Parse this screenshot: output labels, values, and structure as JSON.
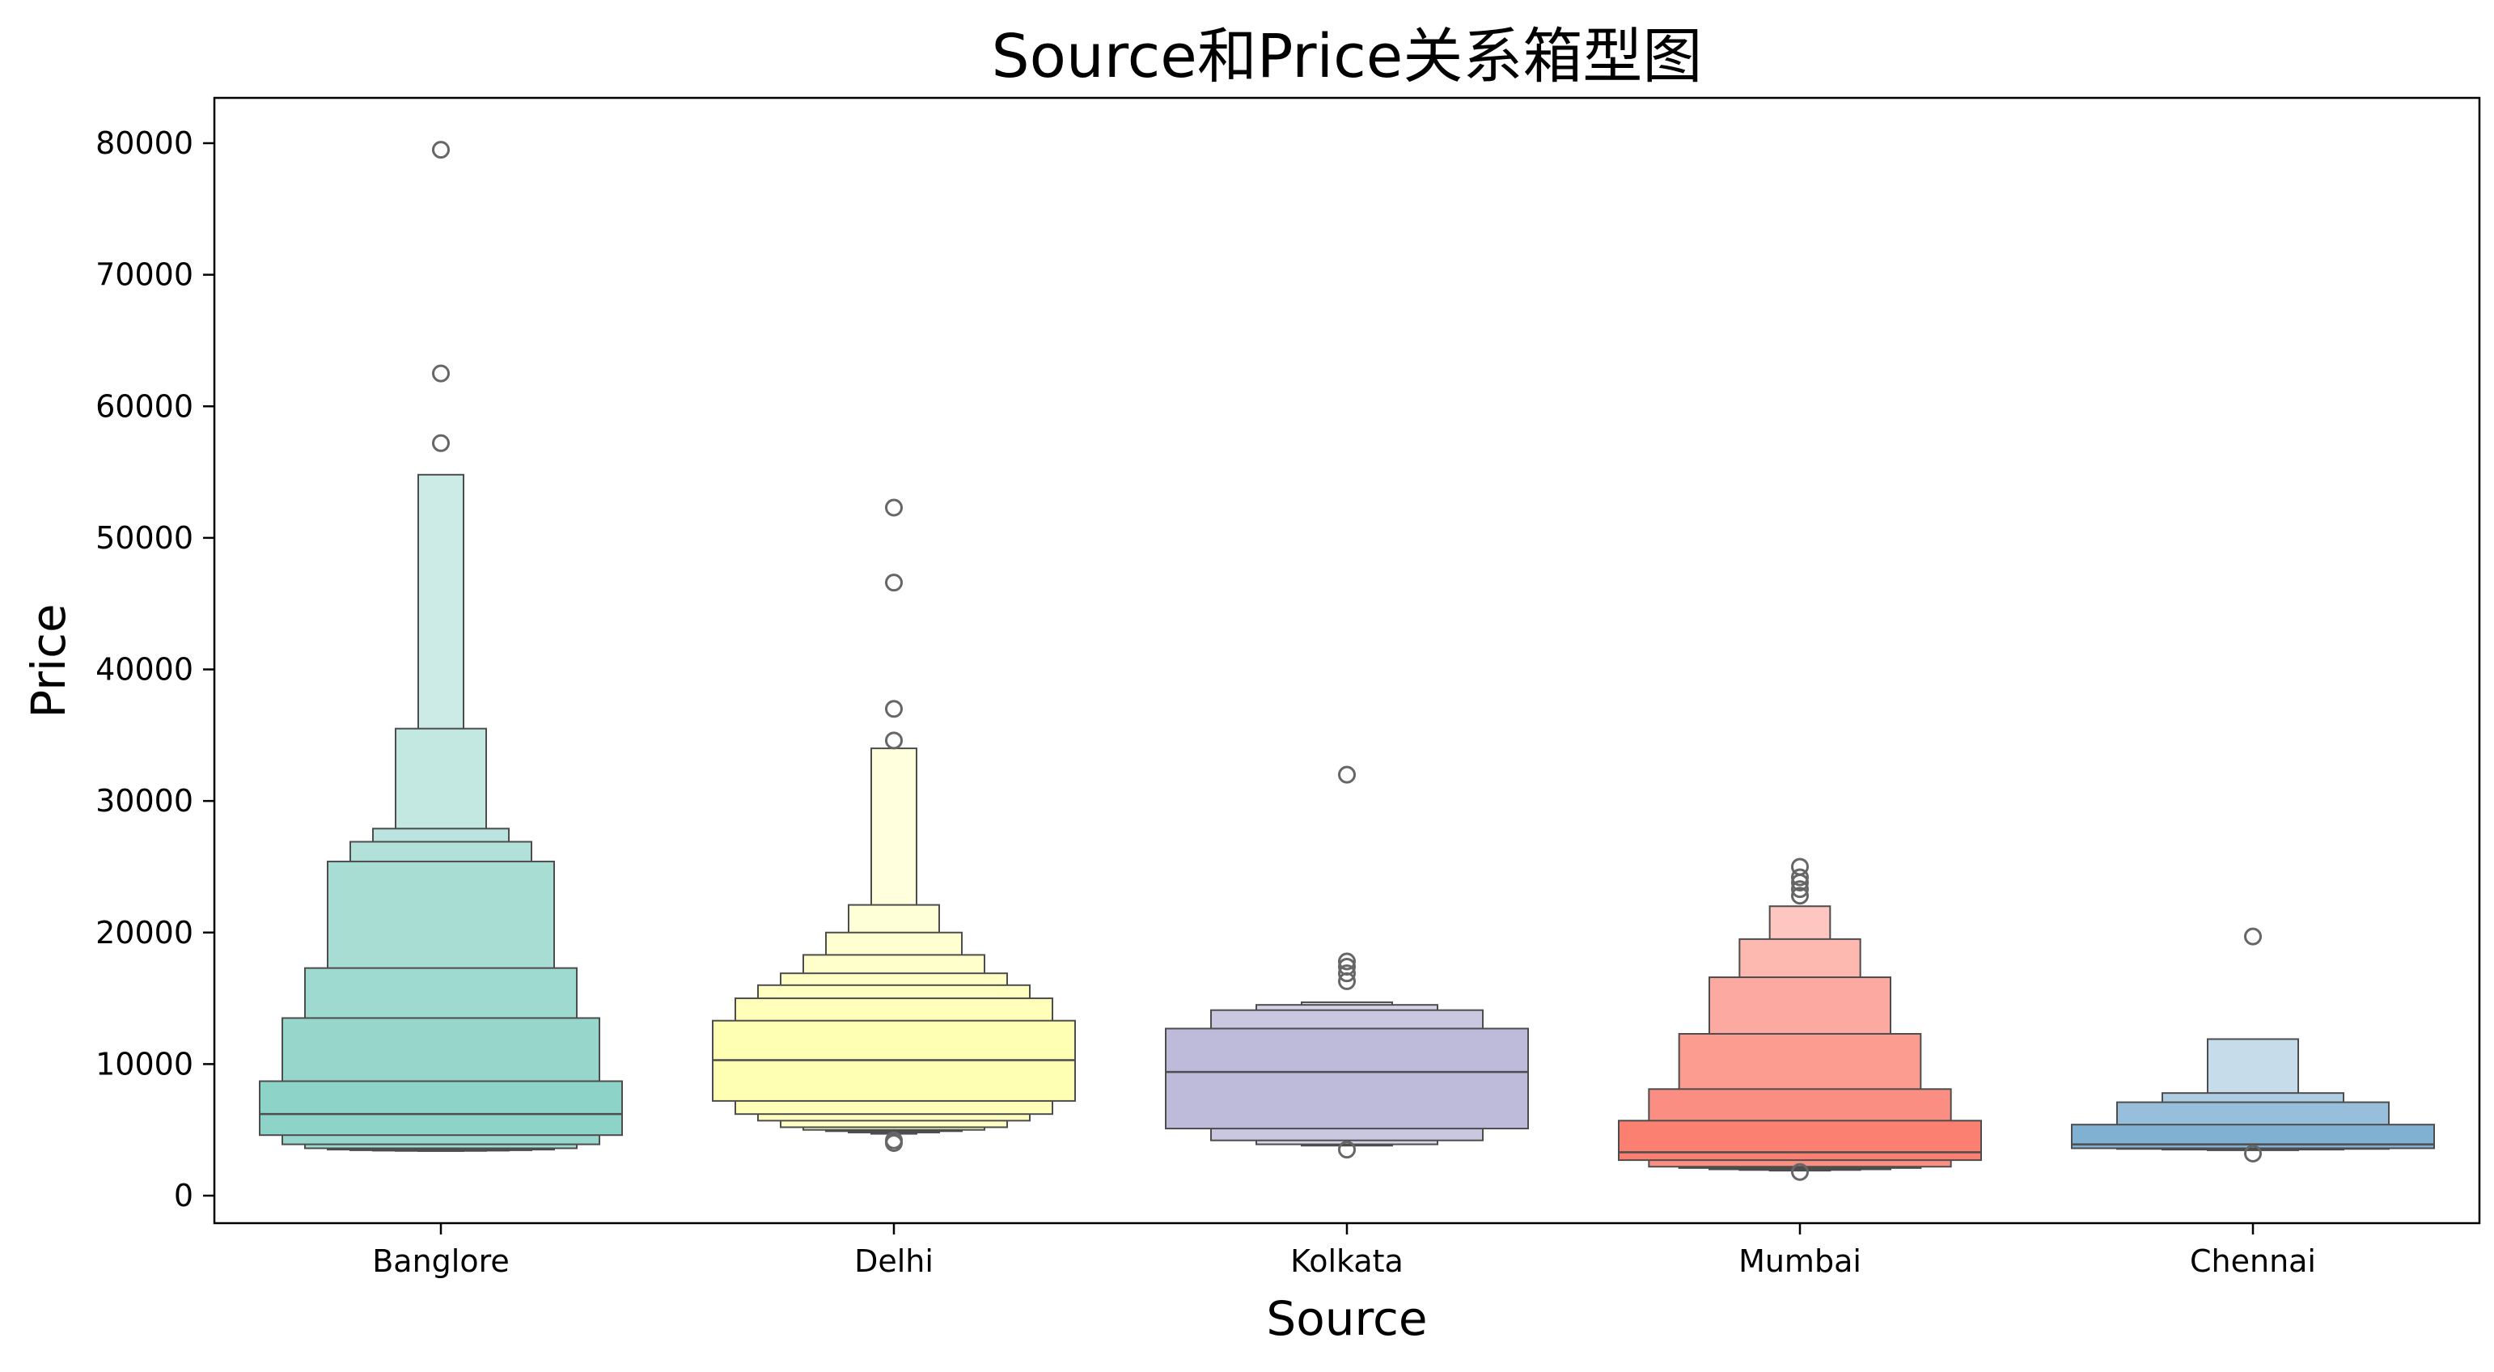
{
  "chart_data": {
    "type": "boxen",
    "title": "Source和Price关系箱型图",
    "xlabel": "Source",
    "ylabel": "Price",
    "ylim": [
      -2000,
      84000
    ],
    "yticks": [
      0,
      10000,
      20000,
      30000,
      40000,
      50000,
      60000,
      70000,
      80000
    ],
    "grid": false,
    "categories": [
      "Banglore",
      "Delhi",
      "Kolkata",
      "Mumbai",
      "Chennai"
    ],
    "colors": [
      "#8dd3c7",
      "#ffffb3",
      "#bebada",
      "#fb8072",
      "#80b1d3"
    ],
    "series": [
      {
        "category": "Banglore",
        "median": 6200,
        "levels": [
          [
            4600,
            8700
          ],
          [
            3900,
            13500
          ],
          [
            3600,
            17300
          ],
          [
            3500,
            25400
          ],
          [
            3450,
            26900
          ],
          [
            3420,
            27900
          ],
          [
            3400,
            35500
          ],
          [
            3390,
            54800
          ]
        ],
        "outliers": [
          57200,
          62500,
          79500
        ]
      },
      {
        "category": "Delhi",
        "median": 10300,
        "levels": [
          [
            7200,
            13300
          ],
          [
            6200,
            15000
          ],
          [
            5700,
            16000
          ],
          [
            5200,
            16900
          ],
          [
            5000,
            18300
          ],
          [
            4900,
            20000
          ],
          [
            4800,
            22100
          ],
          [
            4700,
            34000
          ]
        ],
        "outliers": [
          4000,
          4200,
          34600,
          37000,
          46600,
          52300
        ]
      },
      {
        "category": "Kolkata",
        "median": 9400,
        "levels": [
          [
            5100,
            12700
          ],
          [
            4200,
            14100
          ],
          [
            3900,
            14500
          ],
          [
            3800,
            14700
          ]
        ],
        "outliers": [
          3500,
          16300,
          16900,
          17400,
          17800,
          32000
        ]
      },
      {
        "category": "Mumbai",
        "median": 3300,
        "levels": [
          [
            2700,
            5700
          ],
          [
            2200,
            8100
          ],
          [
            2100,
            12300
          ],
          [
            2000,
            16600
          ],
          [
            1950,
            19500
          ],
          [
            1900,
            22000
          ]
        ],
        "outliers": [
          1800,
          22800,
          23300,
          23800,
          24200,
          25000
        ]
      },
      {
        "category": "Chennai",
        "median": 3900,
        "levels": [
          [
            3600,
            5400
          ],
          [
            3550,
            7100
          ],
          [
            3500,
            7800
          ],
          [
            3450,
            11900
          ]
        ],
        "outliers": [
          3200,
          19700
        ]
      }
    ]
  }
}
